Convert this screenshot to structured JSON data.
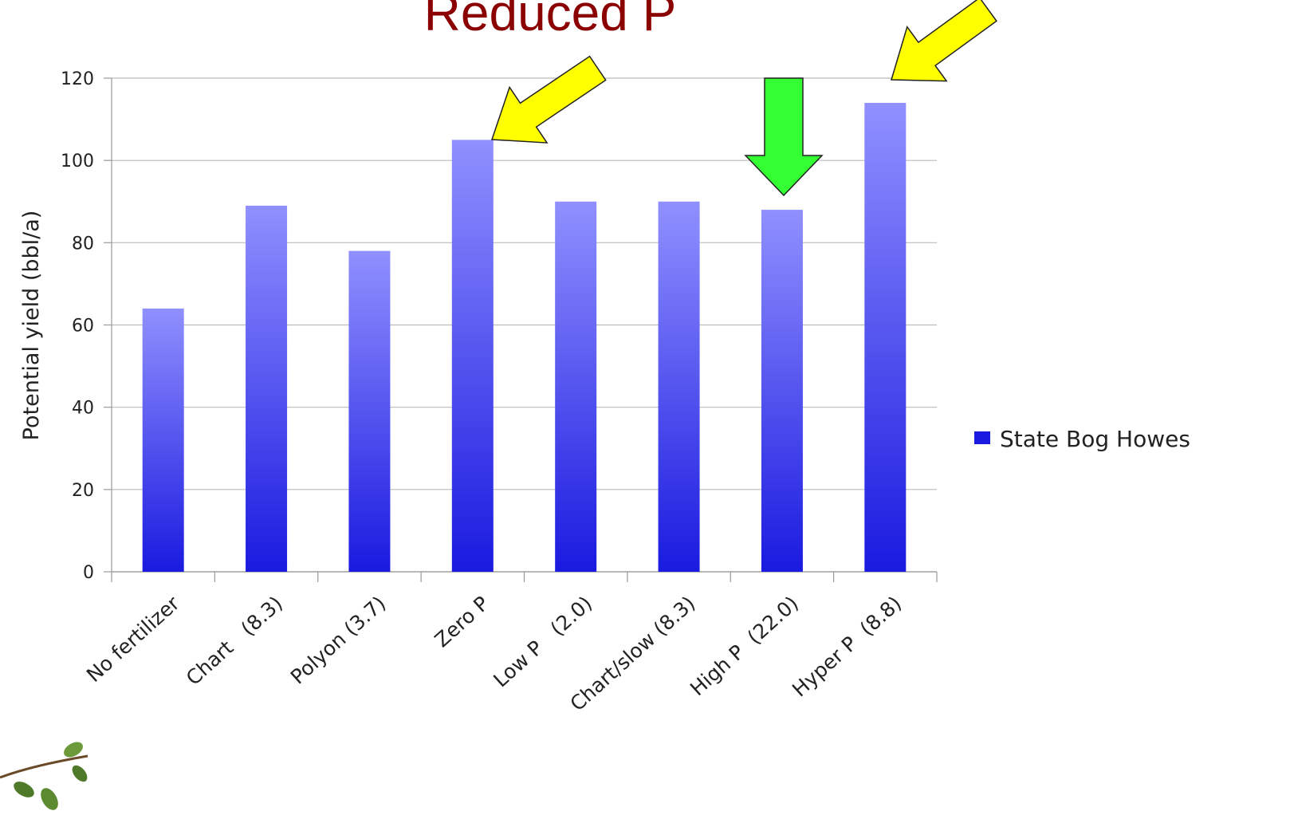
{
  "chart_data": {
    "type": "bar",
    "title": "Reduced P",
    "y_label": "Potential yield (bbl/a)",
    "categories": [
      "No fertilizer",
      "Chart   (8.3)",
      "Polyon (3.7)",
      "Zero P",
      "Low P   (2.0)",
      "Chart/slow (8.3)",
      "High P  (22.0)",
      "Hyper P  (8.8)"
    ],
    "series": [
      {
        "name": "State Bog Howes",
        "color": "#1a1ae0",
        "values": [
          64,
          89,
          78,
          105,
          90,
          90,
          88,
          114
        ]
      }
    ],
    "ylim": [
      0,
      120
    ],
    "yticks": [
      0,
      20,
      40,
      60,
      80,
      100,
      120
    ],
    "grid": true,
    "legend": "right"
  }
}
